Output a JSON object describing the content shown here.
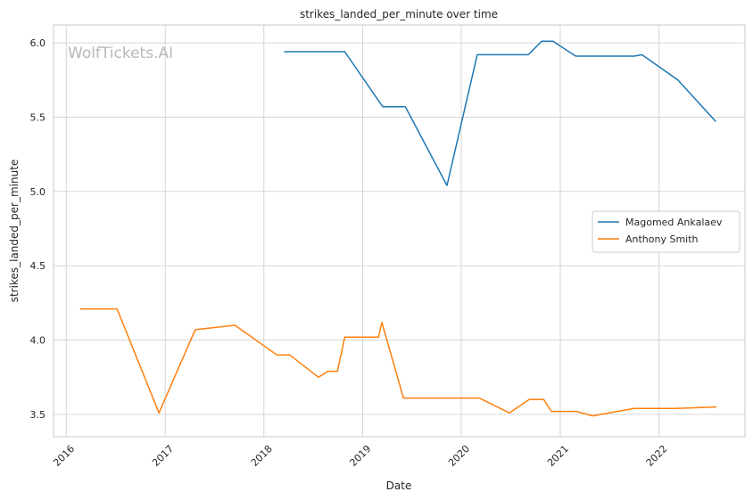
{
  "chart_data": {
    "type": "line",
    "title": "strikes_landed_per_minute over time",
    "xlabel": "Date",
    "ylabel": "strikes_landed_per_minute",
    "watermark": "WolfTickets.AI",
    "xlim": [
      "2015-11-15",
      "2022-11-15"
    ],
    "ylim": [
      3.35,
      6.12
    ],
    "x_ticks": [
      "2016",
      "2017",
      "2018",
      "2019",
      "2020",
      "2021",
      "2022"
    ],
    "y_ticks": [
      "3.5",
      "4.0",
      "4.5",
      "5.0",
      "5.5",
      "6.0"
    ],
    "grid": true,
    "legend_position": "center-right",
    "series": [
      {
        "name": "Magomed Ankalaev",
        "color": "#1f77b4",
        "points": [
          [
            "2018-03-17",
            5.94
          ],
          [
            "2018-10-27",
            5.94
          ],
          [
            "2019-03-16",
            5.57
          ],
          [
            "2019-06-08",
            5.57
          ],
          [
            "2019-11-09",
            5.04
          ],
          [
            "2020-02-29",
            5.92
          ],
          [
            "2020-09-05",
            5.92
          ],
          [
            "2020-10-24",
            6.01
          ],
          [
            "2020-12-05",
            6.01
          ],
          [
            "2021-02-27",
            5.91
          ],
          [
            "2021-10-02",
            5.91
          ],
          [
            "2021-10-30",
            5.92
          ],
          [
            "2022-03-12",
            5.75
          ],
          [
            "2022-07-30",
            5.47
          ]
        ]
      },
      {
        "name": "Anthony Smith",
        "color": "#ff7f0e",
        "points": [
          [
            "2016-02-21",
            4.21
          ],
          [
            "2016-07-07",
            4.21
          ],
          [
            "2016-12-09",
            3.51
          ],
          [
            "2017-04-22",
            4.07
          ],
          [
            "2017-09-16",
            4.1
          ],
          [
            "2018-02-18",
            3.9
          ],
          [
            "2018-04-07",
            3.9
          ],
          [
            "2018-07-22",
            3.75
          ],
          [
            "2018-08-26",
            3.79
          ],
          [
            "2018-09-30",
            3.79
          ],
          [
            "2018-10-27",
            4.02
          ],
          [
            "2019-03-01",
            4.02
          ],
          [
            "2019-03-13",
            4.12
          ],
          [
            "2019-06-01",
            3.61
          ],
          [
            "2020-03-07",
            3.61
          ],
          [
            "2020-06-27",
            3.51
          ],
          [
            "2020-09-08",
            3.6
          ],
          [
            "2020-11-01",
            3.6
          ],
          [
            "2020-11-29",
            3.52
          ],
          [
            "2021-03-01",
            3.52
          ],
          [
            "2021-05-01",
            3.49
          ],
          [
            "2021-10-01",
            3.54
          ],
          [
            "2022-03-01",
            3.54
          ],
          [
            "2022-08-01",
            3.55
          ]
        ]
      }
    ]
  }
}
